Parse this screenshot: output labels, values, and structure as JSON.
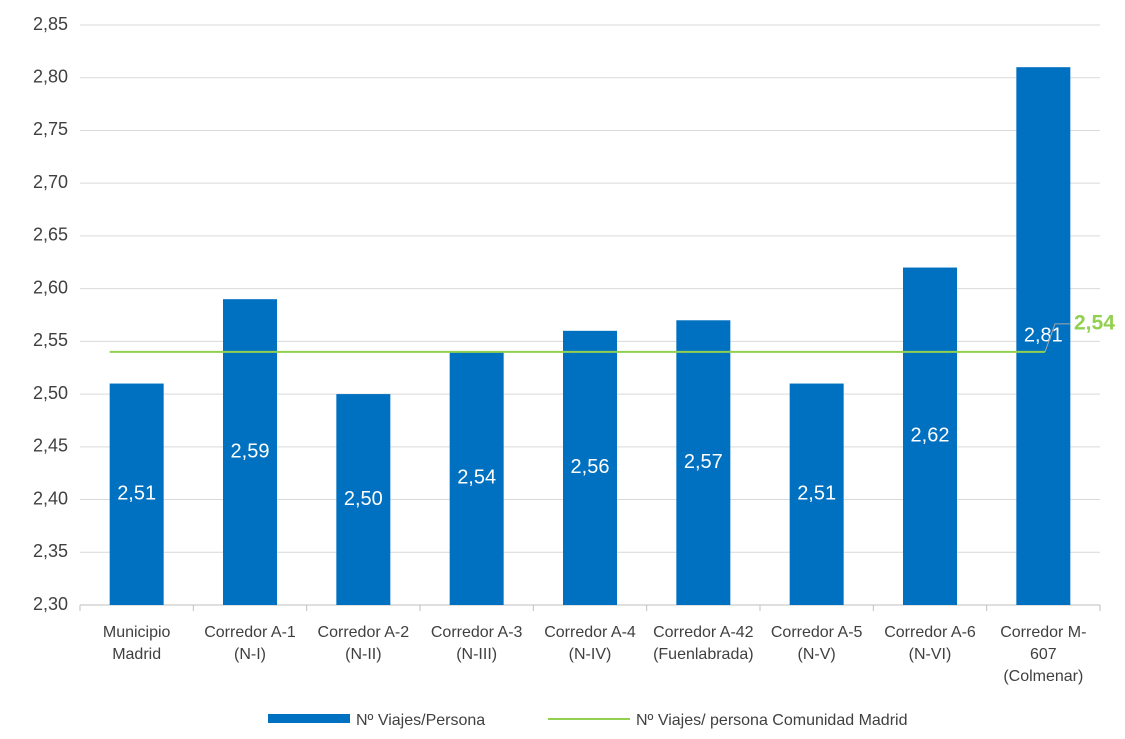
{
  "chart_data": {
    "type": "bar",
    "categories": [
      "Municipio\nMadrid",
      "Corredor A-1\n(N-I)",
      "Corredor A-2\n(N-II)",
      "Corredor A-3\n(N-III)",
      "Corredor A-4\n(N-IV)",
      "Corredor A-42\n(Fuenlabrada)",
      "Corredor A-5\n(N-V)",
      "Corredor A-6\n(N-VI)",
      "Corredor M-\n607\n(Colmenar)"
    ],
    "series": [
      {
        "name": "Nº Viajes/Persona",
        "color": "#0070c0",
        "values": [
          2.51,
          2.59,
          2.5,
          2.54,
          2.56,
          2.57,
          2.51,
          2.62,
          2.81
        ],
        "value_labels": [
          "2,51",
          "2,59",
          "2,50",
          "2,54",
          "2,56",
          "2,57",
          "2,51",
          "2,62",
          "2,81"
        ]
      }
    ],
    "reference_line": {
      "name": "Nº Viajes/ persona Comunidad Madrid",
      "color": "#92d050",
      "value": 2.54,
      "value_label": "2,54"
    },
    "ylim": [
      2.3,
      2.85
    ],
    "yticks": [
      {
        "value": 2.3,
        "label": "2,30"
      },
      {
        "value": 2.35,
        "label": "2,35"
      },
      {
        "value": 2.4,
        "label": "2,40"
      },
      {
        "value": 2.45,
        "label": "2,45"
      },
      {
        "value": 2.5,
        "label": "2,50"
      },
      {
        "value": 2.55,
        "label": "2,55"
      },
      {
        "value": 2.6,
        "label": "2,60"
      },
      {
        "value": 2.65,
        "label": "2,65"
      },
      {
        "value": 2.7,
        "label": "2,70"
      },
      {
        "value": 2.75,
        "label": "2,75"
      },
      {
        "value": 2.8,
        "label": "2,80"
      },
      {
        "value": 2.85,
        "label": "2,85"
      }
    ],
    "grid": true,
    "legend": "bottom"
  }
}
